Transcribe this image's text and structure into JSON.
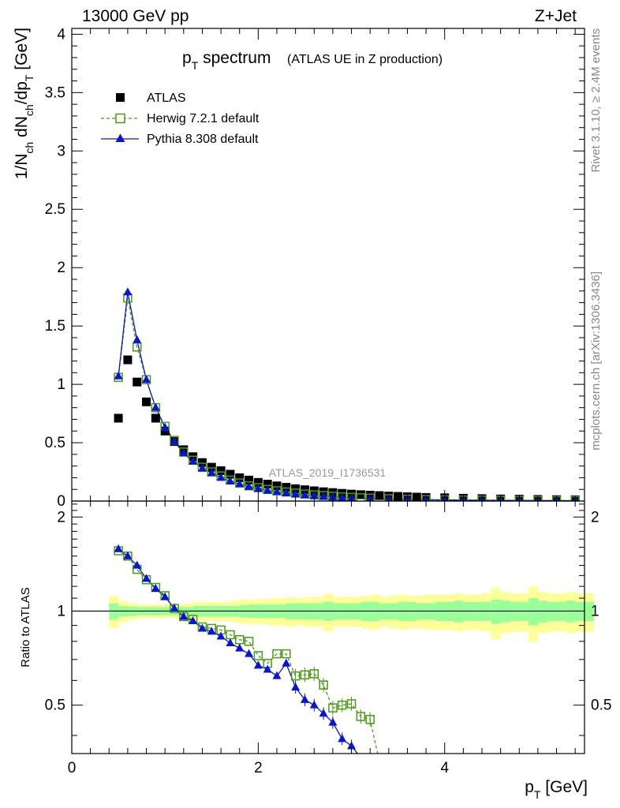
{
  "header": {
    "energy": "13000 GeV pp",
    "process": "Z+Jet",
    "title_main": "p",
    "title_sub": "T",
    "title_rest": " spectrum",
    "title_paren": "(ATLAS UE in Z production)",
    "analysis_id": "ATLAS_2019_I1736531",
    "side_rivet": "Rivet 3.1.10, ≥ 2.4M events",
    "side_mcplots": "mcplots.cern.ch [arXiv:1306.3436]"
  },
  "axes": {
    "y_top_label": "1/N_ch dN_ch/dp_T [GeV]",
    "y_bottom_label": "Ratio to ATLAS",
    "x_label": "p_T [GeV]",
    "top_y_ticks": [
      "0",
      "0.5",
      "1",
      "1.5",
      "2",
      "2.5",
      "3",
      "3.5",
      "4"
    ],
    "bottom_y_ticks": [
      "0.5",
      "1",
      "2"
    ],
    "x_ticks": [
      "0",
      "2",
      "4"
    ]
  },
  "colors": {
    "atlas": "#000000",
    "herwig": "#4a9a12",
    "pythia": "#0a14d6",
    "band_inner": "#99ff99",
    "band_outer": "#ffff99"
  },
  "chart_data": [
    {
      "type": "scatter",
      "title": "p_T spectrum (ATLAS UE in Z production)",
      "xlabel": "p_T [GeV]",
      "ylabel": "1/N_ch dN_ch/dp_T [GeV]",
      "xlim": [
        0,
        5.5
      ],
      "ylim": [
        0,
        4.05
      ],
      "legend": "top-left",
      "series": [
        {
          "name": "ATLAS",
          "marker": "filled-square",
          "x": [
            0.5,
            0.6,
            0.7,
            0.8,
            0.9,
            1.0,
            1.1,
            1.2,
            1.3,
            1.4,
            1.5,
            1.6,
            1.7,
            1.8,
            1.9,
            2.0,
            2.1,
            2.2,
            2.3,
            2.4,
            2.5,
            2.6,
            2.7,
            2.8,
            2.9,
            3.0,
            3.1,
            3.2,
            3.3,
            3.4,
            3.5,
            3.6,
            3.7,
            3.8,
            4.0,
            4.2,
            4.4,
            4.6,
            4.8,
            5.0,
            5.2,
            5.4
          ],
          "y": [
            0.71,
            1.21,
            1.02,
            0.85,
            0.71,
            0.6,
            0.51,
            0.44,
            0.38,
            0.33,
            0.29,
            0.26,
            0.23,
            0.2,
            0.18,
            0.16,
            0.145,
            0.13,
            0.118,
            0.106,
            0.097,
            0.088,
            0.08,
            0.073,
            0.066,
            0.06,
            0.055,
            0.051,
            0.047,
            0.043,
            0.04,
            0.037,
            0.034,
            0.031,
            0.028,
            0.024,
            0.021,
            0.018,
            0.016,
            0.014,
            0.012,
            0.011
          ]
        },
        {
          "name": "Herwig 7.2.1 default",
          "marker": "open-square",
          "line": "dashed",
          "x": [
            0.5,
            0.6,
            0.7,
            0.8,
            0.9,
            1.0,
            1.1,
            1.2,
            1.3,
            1.4,
            1.5,
            1.6,
            1.7,
            1.8,
            1.9,
            2.0,
            2.1,
            2.2,
            2.3,
            2.4,
            2.5,
            2.6,
            2.7,
            2.8,
            2.9,
            3.0,
            3.1,
            3.2,
            3.4,
            3.6,
            3.8,
            4.0,
            4.2,
            4.4,
            4.6,
            4.8,
            5.0,
            5.2,
            5.4
          ],
          "y": [
            1.06,
            1.74,
            1.32,
            1.04,
            0.8,
            0.64,
            0.52,
            0.42,
            0.35,
            0.29,
            0.25,
            0.215,
            0.18,
            0.155,
            0.13,
            0.115,
            0.1,
            0.088,
            0.078,
            0.068,
            0.06,
            0.053,
            0.047,
            0.041,
            0.036,
            0.032,
            0.028,
            0.025,
            0.02,
            0.016,
            0.013,
            0.011,
            0.009,
            0.008,
            0.007,
            0.006,
            0.005,
            0.004,
            0.004
          ]
        },
        {
          "name": "Pythia 8.308 default",
          "marker": "filled-triangle",
          "line": "solid",
          "x": [
            0.5,
            0.6,
            0.7,
            0.8,
            0.9,
            1.0,
            1.1,
            1.2,
            1.3,
            1.4,
            1.5,
            1.6,
            1.7,
            1.8,
            1.9,
            2.0,
            2.1,
            2.2,
            2.3,
            2.4,
            2.5,
            2.6,
            2.7,
            2.8,
            2.9,
            3.0,
            3.2,
            3.4,
            3.6,
            3.8,
            4.0,
            4.2,
            4.4,
            4.6,
            4.8,
            5.0,
            5.2,
            5.4
          ],
          "y": [
            1.07,
            1.79,
            1.38,
            1.04,
            0.8,
            0.63,
            0.51,
            0.41,
            0.34,
            0.28,
            0.24,
            0.2,
            0.17,
            0.145,
            0.123,
            0.105,
            0.09,
            0.078,
            0.068,
            0.059,
            0.051,
            0.045,
            0.039,
            0.034,
            0.03,
            0.026,
            0.021,
            0.017,
            0.014,
            0.011,
            0.009,
            0.008,
            0.007,
            0.006,
            0.005,
            0.004,
            0.004,
            0.003
          ]
        }
      ]
    },
    {
      "type": "line",
      "xlabel": "p_T [GeV]",
      "ylabel": "Ratio to ATLAS",
      "xlim": [
        0,
        5.5
      ],
      "ylim": [
        0.35,
        2.25
      ],
      "y_scale": "log",
      "reference_line": 1,
      "band": {
        "x": [
          0.45,
          0.55,
          0.65,
          0.75,
          0.85,
          0.95,
          1.05,
          1.15,
          1.25,
          1.35,
          1.45,
          1.55,
          1.65,
          1.75,
          1.85,
          1.95,
          2.05,
          2.15,
          2.25,
          2.35,
          2.45,
          2.55,
          2.65,
          2.75,
          2.85,
          2.95,
          3.05,
          3.15,
          3.25,
          3.35,
          3.45,
          3.55,
          3.65,
          3.75,
          3.85,
          3.95,
          4.05,
          4.15,
          4.25,
          4.35,
          4.45,
          4.55,
          4.65,
          4.75,
          4.85,
          4.95,
          5.05,
          5.15,
          5.25,
          5.35,
          5.45,
          5.55
        ],
        "inner_halfwidth": [
          0.06,
          0.04,
          0.035,
          0.03,
          0.03,
          0.03,
          0.03,
          0.03,
          0.03,
          0.04,
          0.04,
          0.04,
          0.04,
          0.04,
          0.045,
          0.05,
          0.05,
          0.05,
          0.05,
          0.06,
          0.06,
          0.06,
          0.06,
          0.07,
          0.06,
          0.06,
          0.06,
          0.07,
          0.07,
          0.06,
          0.06,
          0.07,
          0.07,
          0.06,
          0.06,
          0.07,
          0.07,
          0.08,
          0.07,
          0.07,
          0.07,
          0.09,
          0.08,
          0.07,
          0.07,
          0.1,
          0.08,
          0.07,
          0.07,
          0.08,
          0.07,
          0.07
        ],
        "outer_halfwidth": [
          0.12,
          0.08,
          0.06,
          0.05,
          0.05,
          0.05,
          0.05,
          0.05,
          0.06,
          0.07,
          0.07,
          0.07,
          0.07,
          0.08,
          0.09,
          0.09,
          0.09,
          0.1,
          0.1,
          0.11,
          0.1,
          0.11,
          0.11,
          0.14,
          0.11,
          0.11,
          0.11,
          0.12,
          0.13,
          0.11,
          0.12,
          0.13,
          0.12,
          0.12,
          0.13,
          0.13,
          0.13,
          0.14,
          0.13,
          0.13,
          0.14,
          0.19,
          0.15,
          0.14,
          0.14,
          0.2,
          0.15,
          0.14,
          0.14,
          0.15,
          0.14,
          0.14
        ]
      },
      "series": [
        {
          "name": "Herwig 7.2.1 default",
          "x": [
            0.5,
            0.6,
            0.7,
            0.8,
            0.9,
            1.0,
            1.1,
            1.2,
            1.3,
            1.4,
            1.5,
            1.6,
            1.7,
            1.8,
            1.9,
            2.0,
            2.1,
            2.2,
            2.3,
            2.4,
            2.5,
            2.6,
            2.7,
            2.8,
            2.9,
            3.0,
            3.1,
            3.2,
            3.3
          ],
          "y": [
            1.56,
            1.5,
            1.36,
            1.26,
            1.19,
            1.12,
            1.02,
            0.96,
            0.94,
            0.89,
            0.88,
            0.87,
            0.84,
            0.81,
            0.8,
            0.72,
            0.68,
            0.73,
            0.73,
            0.62,
            0.625,
            0.63,
            0.58,
            0.49,
            0.5,
            0.505,
            0.46,
            0.45,
            0.33
          ]
        },
        {
          "name": "Pythia 8.308 default",
          "x": [
            0.5,
            0.6,
            0.7,
            0.8,
            0.9,
            1.0,
            1.1,
            1.2,
            1.3,
            1.4,
            1.5,
            1.6,
            1.7,
            1.8,
            1.9,
            2.0,
            2.1,
            2.2,
            2.3,
            2.4,
            2.5,
            2.6,
            2.7,
            2.8,
            2.9,
            3.0,
            3.1
          ],
          "y": [
            1.58,
            1.5,
            1.4,
            1.27,
            1.18,
            1.11,
            1.02,
            0.96,
            0.93,
            0.88,
            0.86,
            0.83,
            0.79,
            0.76,
            0.73,
            0.67,
            0.65,
            0.62,
            0.68,
            0.57,
            0.52,
            0.5,
            0.47,
            0.44,
            0.39,
            0.37,
            0.34
          ]
        }
      ]
    }
  ]
}
